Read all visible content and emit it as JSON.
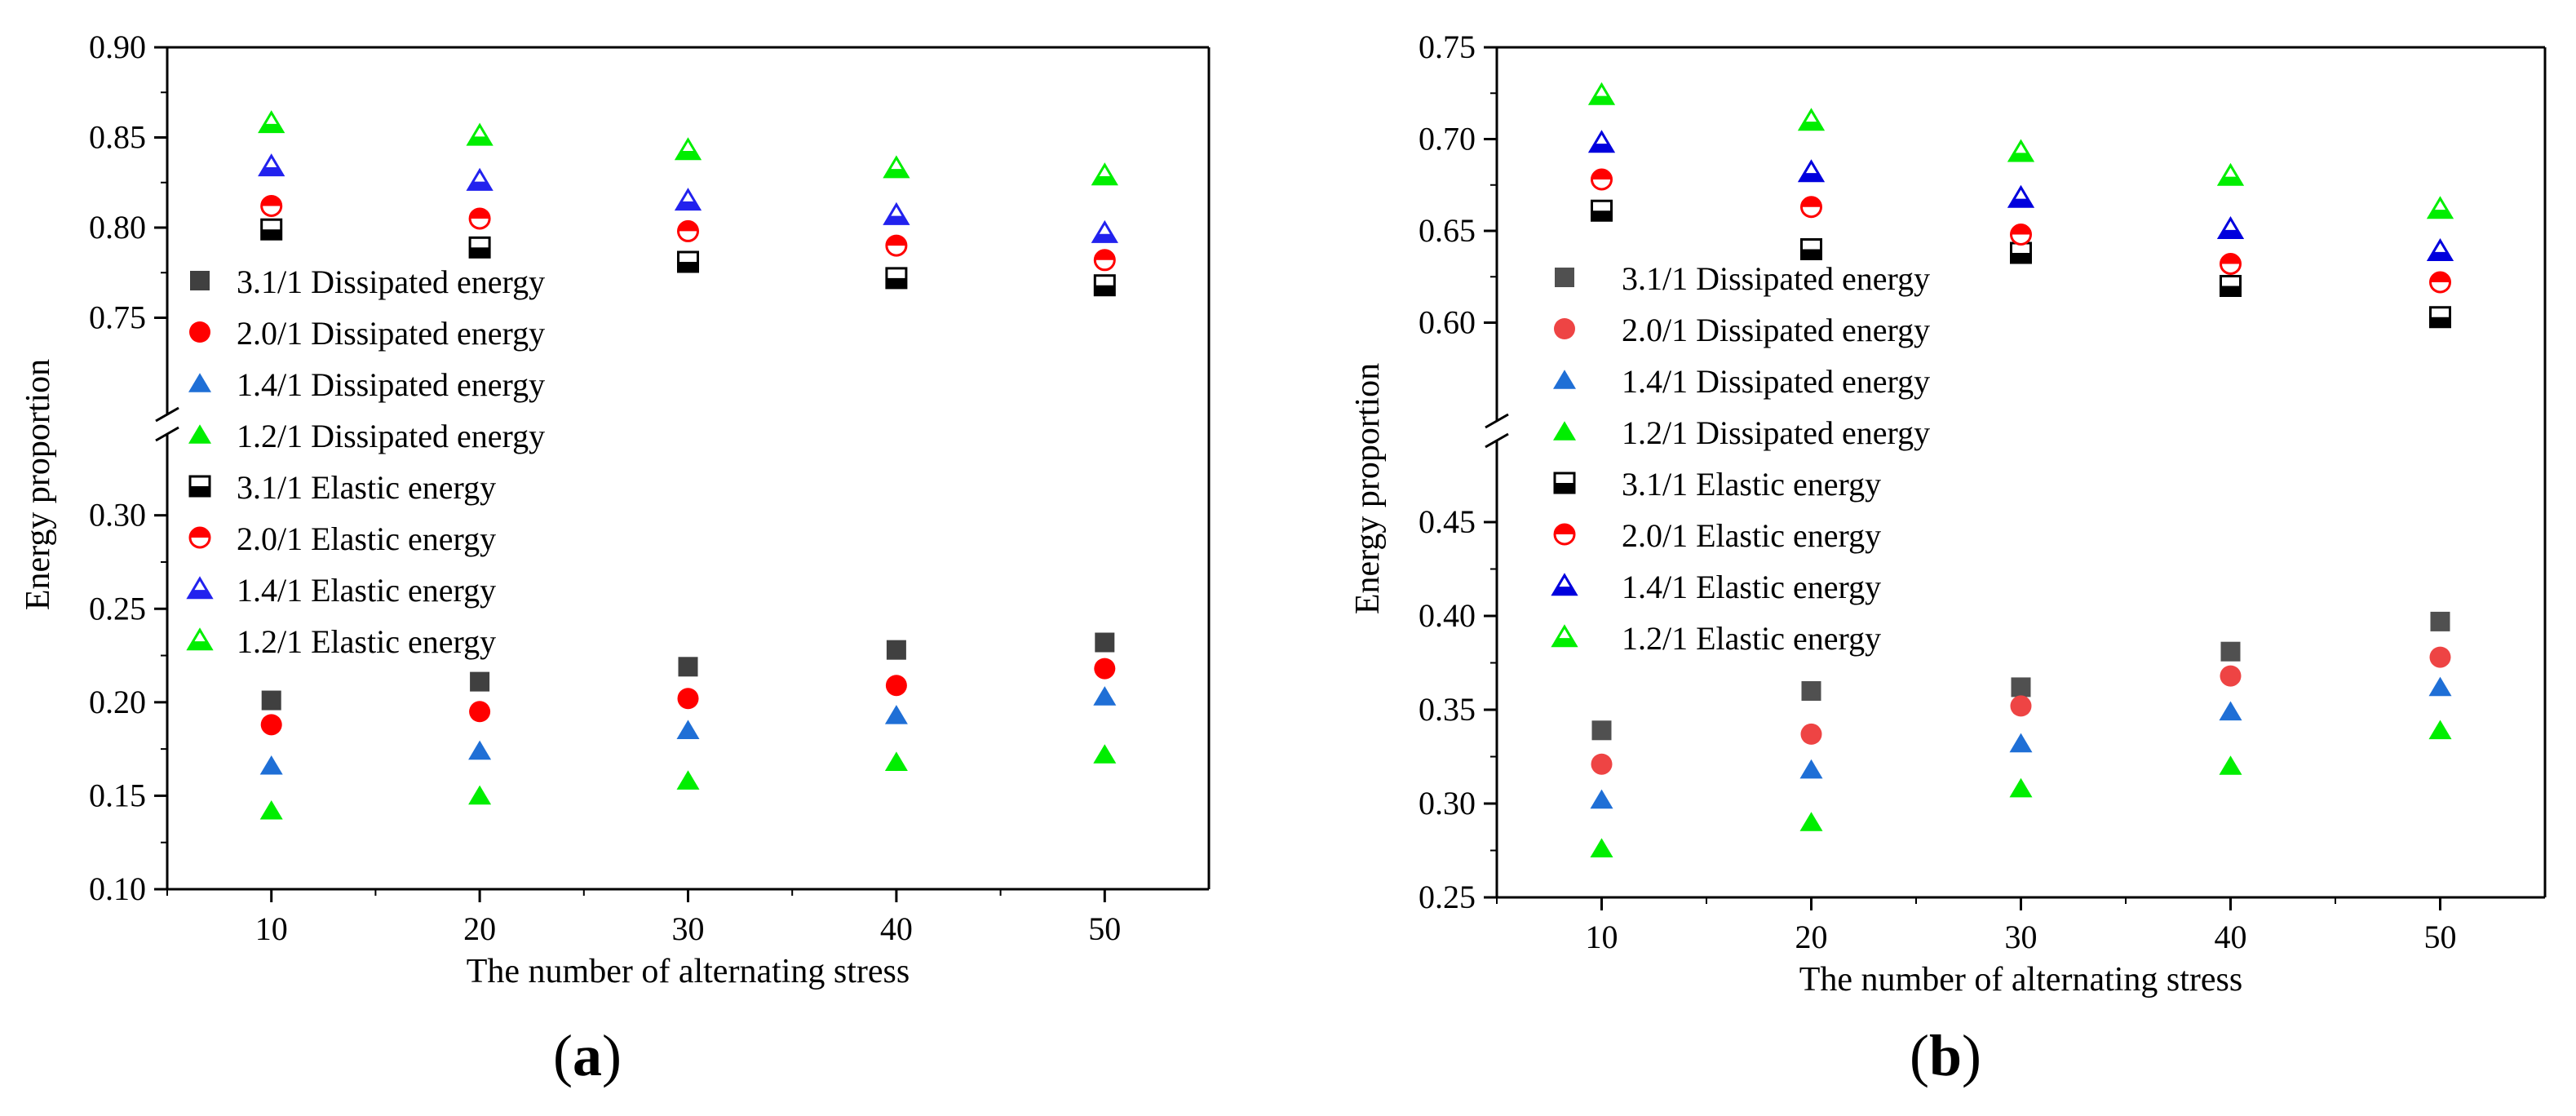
{
  "chart_data": [
    {
      "type": "scatter",
      "panel_label": "a",
      "xlabel": "The number of alternating stress",
      "ylabel": "Energy proportion",
      "x": [
        10,
        20,
        30,
        40,
        50
      ],
      "xticks": [
        "10",
        "20",
        "30",
        "40",
        "50"
      ],
      "upper_yticks": [
        "0.75",
        "0.80",
        "0.85",
        "0.90"
      ],
      "lower_yticks": [
        "0.10",
        "0.15",
        "0.20",
        "0.25",
        "0.30"
      ],
      "upper_ylim": [
        0.7,
        0.9
      ],
      "lower_ylim": [
        0.1,
        0.34
      ],
      "legend_position": "center-left",
      "series": [
        {
          "name": "3.1/1 Dissipated energy",
          "marker": "square",
          "fill": "full",
          "color": "#404040",
          "values": [
            0.201,
            0.211,
            0.219,
            0.228,
            0.232
          ]
        },
        {
          "name": "2.0/1 Dissipated energy",
          "marker": "circle",
          "fill": "full",
          "color": "#ff0000",
          "values": [
            0.188,
            0.195,
            0.202,
            0.209,
            0.218
          ]
        },
        {
          "name": "1.4/1 Dissipated energy",
          "marker": "triangle",
          "fill": "full",
          "color": "#1f6fd6",
          "values": [
            0.166,
            0.174,
            0.185,
            0.193,
            0.203
          ]
        },
        {
          "name": "1.2/1 Dissipated energy",
          "marker": "triangle",
          "fill": "full",
          "color": "#00ee00",
          "values": [
            0.142,
            0.15,
            0.158,
            0.168,
            0.172
          ]
        },
        {
          "name": "3.1/1 Elastic energy",
          "marker": "square",
          "fill": "half",
          "color": "#000000",
          "values": [
            0.799,
            0.789,
            0.781,
            0.772,
            0.768
          ]
        },
        {
          "name": "2.0/1 Elastic energy",
          "marker": "circle",
          "fill": "half",
          "color": "#ff0000",
          "values": [
            0.812,
            0.805,
            0.798,
            0.79,
            0.782
          ]
        },
        {
          "name": "1.4/1 Elastic energy",
          "marker": "triangle",
          "fill": "half",
          "color": "#2222ee",
          "values": [
            0.834,
            0.826,
            0.815,
            0.807,
            0.797
          ]
        },
        {
          "name": "1.2/1 Elastic energy",
          "marker": "triangle",
          "fill": "half",
          "color": "#00ee00",
          "values": [
            0.858,
            0.851,
            0.843,
            0.833,
            0.829
          ]
        }
      ]
    },
    {
      "type": "scatter",
      "panel_label": "b",
      "xlabel": "The number of alternating stress",
      "ylabel": "Energy proportion",
      "x": [
        10,
        20,
        30,
        40,
        50
      ],
      "xticks": [
        "10",
        "20",
        "30",
        "40",
        "50"
      ],
      "upper_yticks": [
        "0.60",
        "0.65",
        "0.70",
        "0.75"
      ],
      "lower_yticks": [
        "0.25",
        "0.30",
        "0.35",
        "0.40",
        "0.45"
      ],
      "upper_ylim": [
        0.55,
        0.75
      ],
      "lower_ylim": [
        0.25,
        0.49
      ],
      "legend_position": "center-left",
      "series": [
        {
          "name": "3.1/1 Dissipated energy",
          "marker": "square",
          "fill": "full",
          "color": "#505050",
          "values": [
            0.339,
            0.36,
            0.362,
            0.381,
            0.397
          ]
        },
        {
          "name": "2.0/1 Dissipated energy",
          "marker": "circle",
          "fill": "full",
          "color": "#ee4444",
          "values": [
            0.321,
            0.337,
            0.352,
            0.368,
            0.378
          ]
        },
        {
          "name": "1.4/1 Dissipated energy",
          "marker": "triangle",
          "fill": "full",
          "color": "#1f6fd6",
          "values": [
            0.302,
            0.318,
            0.332,
            0.349,
            0.362
          ]
        },
        {
          "name": "1.2/1 Dissipated energy",
          "marker": "triangle",
          "fill": "full",
          "color": "#00ee00",
          "values": [
            0.276,
            0.29,
            0.308,
            0.32,
            0.339
          ]
        },
        {
          "name": "3.1/1 Elastic energy",
          "marker": "square",
          "fill": "half",
          "color": "#000000",
          "values": [
            0.661,
            0.64,
            0.638,
            0.62,
            0.603
          ]
        },
        {
          "name": "2.0/1 Elastic energy",
          "marker": "circle",
          "fill": "half",
          "color": "#ff0000",
          "values": [
            0.678,
            0.663,
            0.648,
            0.632,
            0.622
          ]
        },
        {
          "name": "1.4/1 Elastic energy",
          "marker": "triangle",
          "fill": "half",
          "color": "#0000dd",
          "values": [
            0.698,
            0.682,
            0.668,
            0.651,
            0.639
          ]
        },
        {
          "name": "1.2/1 Elastic energy",
          "marker": "triangle",
          "fill": "half",
          "color": "#00ee00",
          "values": [
            0.724,
            0.71,
            0.693,
            0.68,
            0.662
          ]
        }
      ]
    }
  ]
}
